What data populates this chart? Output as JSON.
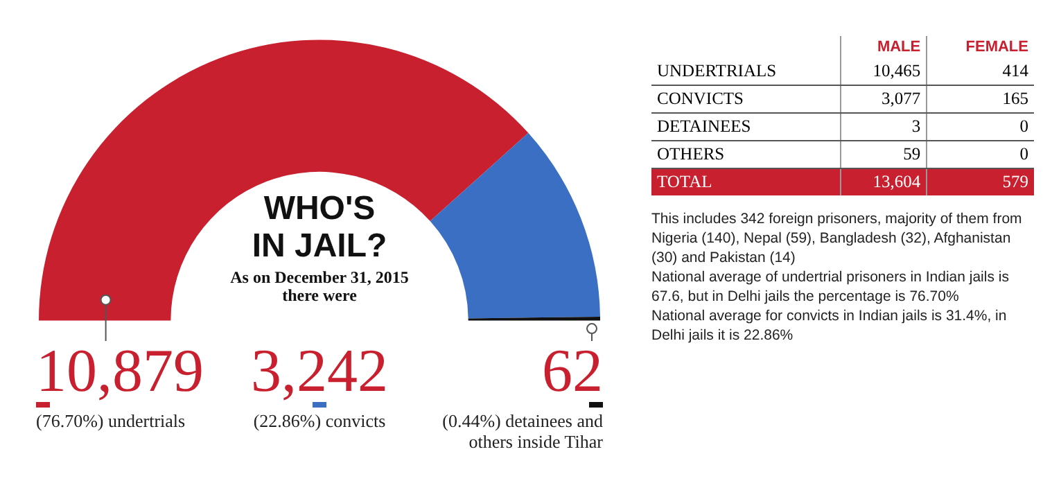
{
  "chart_data": [
    {
      "type": "donut",
      "title": "WHO'S IN JAIL?",
      "subtitle": "As on December 31, 2015 there were",
      "categories": [
        "(76.70%) undertrials",
        "(22.86%) convicts",
        "(0.44%) detainees and others inside Tihar"
      ],
      "values": [
        10879,
        3242,
        62
      ],
      "value_labels": [
        "10,879",
        "3,242",
        "62"
      ],
      "colors": [
        "#c8202f",
        "#3a6fc4",
        "#111111"
      ],
      "legend": "bottom"
    },
    {
      "type": "heatmap",
      "categories": [
        "MALE",
        "FEMALE"
      ],
      "y_categories": [
        "UNDERTRIALS",
        "CONVICTS",
        "DETAINEES",
        "OTHERS",
        "TOTAL"
      ],
      "cells": [
        [
          10465,
          414
        ],
        [
          3077,
          165
        ],
        [
          3,
          0
        ],
        [
          59,
          0
        ],
        [
          13604,
          579
        ]
      ],
      "cell_labels": [
        [
          "10,465",
          "414"
        ],
        [
          "3,077",
          "165"
        ],
        [
          "3",
          "0"
        ],
        [
          "59",
          "0"
        ],
        [
          "13,604",
          "579"
        ]
      ],
      "annotations": [
        "This includes 342 foreign prisoners, majority of them from Nigeria (140), Nepal (59), Bangladesh (32), Afghanistan (30) and Pakistan (14)",
        "National average of undertrial prisoners in Indian jails is 67.6, but in Delhi jails the percentage is 76.70%",
        "National average for convicts in Indian jails is 31.4%, in Delhi jails it is 22.86%"
      ]
    }
  ]
}
